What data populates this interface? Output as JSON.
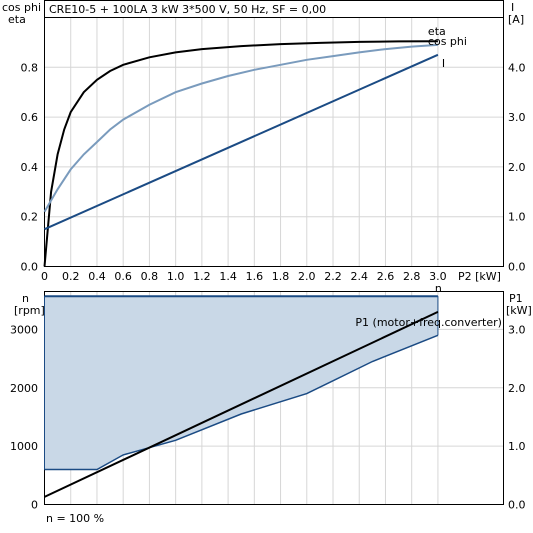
{
  "header": {
    "title": "CRE10-5 + 100LA   3 kW   3*500 V, 50 Hz, SF = 0,00"
  },
  "footer": {
    "speed_note": "n = 100 %"
  },
  "colors": {
    "eta": "#000000",
    "cos_phi": "#7a9bbd",
    "current": "#1b4b84",
    "speed": "#1b4b84",
    "speed_fill": "#c9d8e7",
    "p1": "#000000",
    "grid": "#d6d6d6"
  },
  "chart_data": [
    {
      "type": "line",
      "name": "efficiency-chart",
      "left_axis_label_1": "cos phi",
      "left_axis_label_2": "eta",
      "right_axis_label_1": "I",
      "right_axis_label_2": "[A]",
      "xlabel": "P2 [kW]",
      "xlim": [
        0,
        3.5
      ],
      "ylim_left": [
        0,
        1.0
      ],
      "ylim_right": [
        0,
        5.0
      ],
      "x_ticks": [
        "0",
        "0.2",
        "0.4",
        "0.6",
        "0.8",
        "1.0",
        "1.2",
        "1.4",
        "1.6",
        "1.8",
        "2.0",
        "2.2",
        "2.4",
        "2.6",
        "2.8",
        "3.0"
      ],
      "x_tick_values": [
        0,
        0.2,
        0.4,
        0.6,
        0.8,
        1.0,
        1.2,
        1.4,
        1.6,
        1.8,
        2.0,
        2.2,
        2.4,
        2.6,
        2.8,
        3.0
      ],
      "y_ticks_left": [
        "0.0",
        "0.2",
        "0.4",
        "0.6",
        "0.8"
      ],
      "y_tick_values_left": [
        0,
        0.2,
        0.4,
        0.6,
        0.8
      ],
      "y_ticks_right": [
        "0.0",
        "1.0",
        "2.0",
        "3.0",
        "4.0"
      ],
      "y_tick_values_right": [
        0,
        1.0,
        2.0,
        3.0,
        4.0
      ],
      "grid": true,
      "series": [
        {
          "name": "eta",
          "axis": "left",
          "x": [
            0,
            0.05,
            0.1,
            0.15,
            0.2,
            0.3,
            0.4,
            0.5,
            0.6,
            0.8,
            1.0,
            1.2,
            1.5,
            1.8,
            2.1,
            2.4,
            2.7,
            3.0
          ],
          "y": [
            0.0,
            0.3,
            0.45,
            0.55,
            0.62,
            0.7,
            0.75,
            0.785,
            0.81,
            0.84,
            0.86,
            0.873,
            0.885,
            0.893,
            0.898,
            0.902,
            0.904,
            0.905
          ]
        },
        {
          "name": "cos phi",
          "axis": "left",
          "x": [
            0,
            0.1,
            0.2,
            0.3,
            0.4,
            0.5,
            0.6,
            0.8,
            1.0,
            1.2,
            1.4,
            1.6,
            1.8,
            2.0,
            2.2,
            2.4,
            2.6,
            2.8,
            3.0
          ],
          "y": [
            0.22,
            0.31,
            0.39,
            0.45,
            0.5,
            0.55,
            0.59,
            0.65,
            0.7,
            0.735,
            0.765,
            0.79,
            0.81,
            0.83,
            0.845,
            0.86,
            0.873,
            0.883,
            0.89
          ]
        },
        {
          "name": "I",
          "axis": "right",
          "x": [
            0,
            3.0
          ],
          "y": [
            0.75,
            4.25
          ]
        }
      ]
    },
    {
      "type": "area",
      "name": "speed-power-chart",
      "left_axis_label_1": "n",
      "left_axis_label_2": "[rpm]",
      "right_axis_label_1": "P1",
      "right_axis_label_2": "[kW]",
      "xlim": [
        0,
        3.5
      ],
      "ylim_left": [
        0,
        3650
      ],
      "ylim_right": [
        0,
        3.65
      ],
      "y_ticks_left": [
        "0",
        "1000",
        "2000",
        "3000"
      ],
      "y_tick_values_left": [
        0,
        1000,
        2000,
        3000
      ],
      "y_ticks_right": [
        "0.0",
        "1.0",
        "2.0",
        "3.0"
      ],
      "y_tick_values_right": [
        0,
        1.0,
        2.0,
        3.0
      ],
      "grid": true,
      "series": [
        {
          "name": "n",
          "axis": "left",
          "x": [
            0,
            3.0
          ],
          "y": [
            3570,
            3570
          ]
        },
        {
          "name": "P1 (motor+freq.converter)",
          "axis": "right",
          "x": [
            0,
            3.0
          ],
          "y": [
            0.13,
            3.3
          ]
        },
        {
          "name": "area-lower-boundary",
          "axis": "left",
          "x": [
            0,
            0.4,
            0.6,
            1.0,
            1.5,
            2.0,
            2.5,
            3.0
          ],
          "y": [
            600,
            600,
            850,
            1100,
            1550,
            1900,
            2450,
            2900
          ]
        }
      ]
    }
  ]
}
